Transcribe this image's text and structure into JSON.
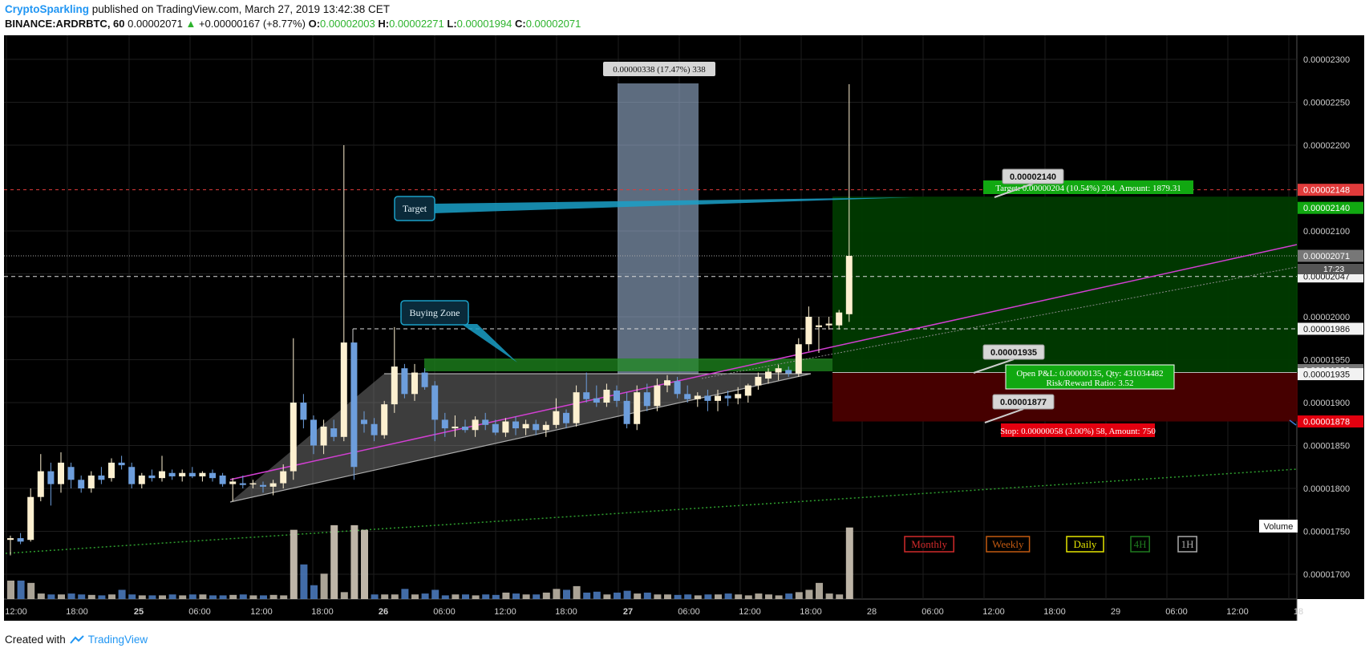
{
  "header": {
    "brand": "CryptoSparkling",
    "published": "published on TradingView.com, March 27, 2019 13:42:38 CET",
    "symbol": "BINANCE:ARDRBTC, 60",
    "last": "0.00002071",
    "arrow": "▲",
    "change": "+0.00000167 (+8.77%)",
    "o_label": "O:",
    "o": "0.00002003",
    "h_label": "H:",
    "h": "0.00002271",
    "l_label": "L:",
    "l": "0.00001994",
    "c_label": "C:",
    "c": "0.00002071"
  },
  "footer": {
    "created": "Created with",
    "tv": "TradingView"
  },
  "colors": {
    "bg": "#000000",
    "grid": "#1e1e1e",
    "up": "#fdf0d0",
    "down": "#6d9edc",
    "profit": "#003a00",
    "loss": "#4a0000",
    "target_line": "#e03b3b",
    "trend_magenta": "#d23fd2",
    "green_dots": "#2e9e2e"
  },
  "chart_data": {
    "type": "candlestick",
    "y_unit": "BTC",
    "ylim": [
      1.66e-05,
      2.33e-05
    ],
    "y_ticks": [
      "0.00002300",
      "0.00002250",
      "0.00002200",
      "0.00002100",
      "0.00002050",
      "0.00002000",
      "0.00001950",
      "0.00001900",
      "0.00001850",
      "0.00001800",
      "0.00001750",
      "0.00001700"
    ],
    "x_ticks": [
      "12:00",
      "18:00",
      "25",
      "06:00",
      "12:00",
      "18:00",
      "26",
      "06:00",
      "12:00",
      "18:00",
      "27",
      "06:00",
      "12:00",
      "18:00",
      "28",
      "06:00",
      "12:00",
      "18:00",
      "29",
      "06:00",
      "12:00",
      "18"
    ],
    "price_labels": [
      {
        "value": "0.00002148",
        "color": "#e03b3b"
      },
      {
        "value": "0.00002140",
        "color": "#11a811"
      },
      {
        "value": "0.00002071",
        "color": "#777777"
      },
      {
        "value": "0.00002047",
        "color": "#f2f2f2"
      },
      {
        "value": "0.00001986",
        "color": "#f2f2f2"
      },
      {
        "value": "0.00001936",
        "color": "#777777"
      },
      {
        "value": "0.00001935",
        "color": "#f2f2f2"
      },
      {
        "value": "0.00001878",
        "color": "#e3000f"
      }
    ],
    "countdown": "17:23",
    "candles": [
      [
        1.74e-05,
        1.745e-05,
        1.722e-05,
        1.742e-05
      ],
      [
        1.742e-05,
        1.748e-05,
        1.735e-05,
        1.738e-05
      ],
      [
        1.74e-05,
        1.8e-05,
        1.738e-05,
        1.79e-05
      ],
      [
        1.79e-05,
        1.84e-05,
        1.785e-05,
        1.82e-05
      ],
      [
        1.82e-05,
        1.83e-05,
        1.78e-05,
        1.805e-05
      ],
      [
        1.805e-05,
        1.842e-05,
        1.795e-05,
        1.83e-05
      ],
      [
        1.825e-05,
        1.83e-05,
        1.8e-05,
        1.81e-05
      ],
      [
        1.81e-05,
        1.815e-05,
        1.795e-05,
        1.8e-05
      ],
      [
        1.8e-05,
        1.82e-05,
        1.795e-05,
        1.815e-05
      ],
      [
        1.815e-05,
        1.825e-05,
        1.805e-05,
        1.81e-05
      ],
      [
        1.812e-05,
        1.835e-05,
        1.808e-05,
        1.83e-05
      ],
      [
        1.83e-05,
        1.838e-05,
        1.822e-05,
        1.827e-05
      ],
      [
        1.825e-05,
        1.83e-05,
        1.8e-05,
        1.805e-05
      ],
      [
        1.805e-05,
        1.818e-05,
        1.8e-05,
        1.815e-05
      ],
      [
        1.815e-05,
        1.822e-05,
        1.808e-05,
        1.812e-05
      ],
      [
        1.812e-05,
        1.838e-05,
        1.808e-05,
        1.82e-05
      ],
      [
        1.818e-05,
        1.822e-05,
        1.81e-05,
        1.814e-05
      ],
      [
        1.814e-05,
        1.822e-05,
        1.808e-05,
        1.818e-05
      ],
      [
        1.818e-05,
        1.825e-05,
        1.812e-05,
        1.814e-05
      ],
      [
        1.814e-05,
        1.82e-05,
        1.808e-05,
        1.818e-05
      ],
      [
        1.818e-05,
        1.822e-05,
        1.808e-05,
        1.812e-05
      ],
      [
        1.815e-05,
        1.818e-05,
        1.802e-05,
        1.805e-05
      ],
      [
        1.805e-05,
        1.812e-05,
        1.785e-05,
        1.808e-05
      ],
      [
        1.806e-05,
        1.815e-05,
        1.8e-05,
        1.804e-05
      ],
      [
        1.805e-05,
        1.81e-05,
        1.8e-05,
        1.806e-05
      ],
      [
        1.804e-05,
        1.808e-05,
        1.795e-05,
        1.802e-05
      ],
      [
        1.802e-05,
        1.81e-05,
        1.792e-05,
        1.806e-05
      ],
      [
        1.806e-05,
        1.828e-05,
        1.8e-05,
        1.82e-05
      ],
      [
        1.82e-05,
        1.975e-05,
        1.81e-05,
        1.9e-05
      ],
      [
        1.9e-05,
        1.91e-05,
        1.87e-05,
        1.88e-05
      ],
      [
        1.88e-05,
        1.885e-05,
        1.84e-05,
        1.85e-05
      ],
      [
        1.85e-05,
        1.88e-05,
        1.84e-05,
        1.872e-05
      ],
      [
        1.87e-05,
        1.88e-05,
        1.855e-05,
        1.86e-05
      ],
      [
        1.86e-05,
        2.2e-05,
        1.855e-05,
        1.97e-05
      ],
      [
        1.97e-05,
        1.97e-05,
        1.81e-05,
        1.825e-05
      ],
      [
        1.88e-05,
        1.89e-05,
        1.865e-05,
        1.875e-05
      ],
      [
        1.875e-05,
        1.882e-05,
        1.855e-05,
        1.862e-05
      ],
      [
        1.862e-05,
        1.902e-05,
        1.858e-05,
        1.898e-05
      ],
      [
        1.898e-05,
        1.988e-05,
        1.888e-05,
        1.942e-05
      ],
      [
        1.94e-05,
        1.945e-05,
        1.905e-05,
        1.91e-05
      ],
      [
        1.91e-05,
        1.945e-05,
        1.902e-05,
        1.935e-05
      ],
      [
        1.935e-05,
        1.94e-05,
        1.915e-05,
        1.918e-05
      ],
      [
        1.92e-05,
        1.925e-05,
        1.855e-05,
        1.88e-05
      ],
      [
        1.88e-05,
        1.888e-05,
        1.86e-05,
        1.87e-05
      ],
      [
        1.87e-05,
        1.885e-05,
        1.86e-05,
        1.872e-05
      ],
      [
        1.872e-05,
        1.88e-05,
        1.865e-05,
        1.868e-05
      ],
      [
        1.868e-05,
        1.884e-05,
        1.86e-05,
        1.88e-05
      ],
      [
        1.88e-05,
        1.888e-05,
        1.868e-05,
        1.874e-05
      ],
      [
        1.875e-05,
        1.88e-05,
        1.862e-05,
        1.865e-05
      ],
      [
        1.865e-05,
        1.882e-05,
        1.86e-05,
        1.878e-05
      ],
      [
        1.878e-05,
        1.884e-05,
        1.862e-05,
        1.87e-05
      ],
      [
        1.87e-05,
        1.88e-05,
        1.862e-05,
        1.875e-05
      ],
      [
        1.875e-05,
        1.88e-05,
        1.862e-05,
        1.868e-05
      ],
      [
        1.868e-05,
        1.878e-05,
        1.86e-05,
        1.874e-05
      ],
      [
        1.874e-05,
        1.905e-05,
        1.87e-05,
        1.89e-05
      ],
      [
        1.888e-05,
        1.892e-05,
        1.87e-05,
        1.876e-05
      ],
      [
        1.876e-05,
        1.92e-05,
        1.872e-05,
        1.912e-05
      ],
      [
        1.912e-05,
        1.935e-05,
        1.9e-05,
        1.904e-05
      ],
      [
        1.905e-05,
        1.92e-05,
        1.895e-05,
        1.9e-05
      ],
      [
        1.9e-05,
        1.922e-05,
        1.895e-05,
        1.915e-05
      ],
      [
        1.914e-05,
        1.92e-05,
        1.895e-05,
        1.902e-05
      ],
      [
        1.902e-05,
        1.912e-05,
        1.87e-05,
        1.875e-05
      ],
      [
        1.875e-05,
        1.92e-05,
        1.868e-05,
        1.912e-05
      ],
      [
        1.912e-05,
        1.922e-05,
        1.89e-05,
        1.896e-05
      ],
      [
        1.896e-05,
        1.928e-05,
        1.89e-05,
        1.92e-05
      ],
      [
        1.92e-05,
        1.932e-05,
        1.912e-05,
        1.926e-05
      ],
      [
        1.925e-05,
        1.93e-05,
        1.905e-05,
        1.91e-05
      ],
      [
        1.91e-05,
        1.92e-05,
        1.9e-05,
        1.904e-05
      ],
      [
        1.904e-05,
        1.912e-05,
        1.895e-05,
        1.908e-05
      ],
      [
        1.908e-05,
        1.915e-05,
        1.89e-05,
        1.902e-05
      ],
      [
        1.902e-05,
        1.915e-05,
        1.89e-05,
        1.908e-05
      ],
      [
        1.908e-05,
        1.914e-05,
        1.896e-05,
        1.905e-05
      ],
      [
        1.905e-05,
        1.918e-05,
        1.898e-05,
        1.91e-05
      ],
      [
        1.908e-05,
        1.922e-05,
        1.9e-05,
        1.92e-05
      ],
      [
        1.92e-05,
        1.935e-05,
        1.915e-05,
        1.93e-05
      ],
      [
        1.928e-05,
        1.94e-05,
        1.922e-05,
        1.936e-05
      ],
      [
        1.935e-05,
        1.944e-05,
        1.926e-05,
        1.94e-05
      ],
      [
        1.938e-05,
        1.942e-05,
        1.93e-05,
        1.934e-05
      ],
      [
        1.934e-05,
        1.975e-05,
        1.93e-05,
        1.968e-05
      ],
      [
        1.968e-05,
        2.012e-05,
        1.96e-05,
        2e-05
      ],
      [
        1.988e-05,
        2e-05,
        1.958e-05,
        1.99e-05
      ],
      [
        1.99e-05,
        2e-05,
        1.985e-05,
        1.992e-05
      ],
      [
        1.99e-05,
        2.008e-05,
        1.985e-05,
        2.005e-05
      ],
      [
        2.003e-05,
        2.271e-05,
        1.994e-05,
        2.071e-05
      ]
    ],
    "volume": [
      40,
      40,
      35,
      12,
      10,
      10,
      12,
      10,
      9,
      8,
      10,
      20,
      10,
      8,
      8,
      8,
      10,
      8,
      10,
      10,
      8,
      8,
      9,
      10,
      8,
      8,
      9,
      8,
      150,
      75,
      30,
      55,
      160,
      15,
      160,
      150,
      10,
      10,
      10,
      22,
      10,
      12,
      20,
      8,
      10,
      10,
      8,
      10,
      9,
      14,
      12,
      10,
      10,
      14,
      22,
      20,
      28,
      14,
      16,
      10,
      14,
      18,
      12,
      14,
      10,
      10,
      9,
      10,
      8,
      10,
      10,
      12,
      10,
      8,
      12,
      10,
      8,
      12,
      15,
      20,
      35,
      12,
      10,
      155
    ],
    "volume_label": "Volume",
    "measure_label": "0.00000338 (17.47%) 338",
    "target_label": "Target: 0.00000204 (10.54%) 204, Amount: 1879.31",
    "stop_label": "Stop: 0.00000058 (3.00%) 58, Amount: 750",
    "pnl_line1": "Open P&L: 0.00000135, Qty: 431034482",
    "pnl_line2": "Risk/Reward Ratio: 3.52",
    "callout_target": "0.00002140",
    "callout_entry": "0.00001935",
    "callout_stop": "0.00001877",
    "annot_target": "Target",
    "annot_buying_zone": "Buying Zone",
    "timeframes": [
      {
        "label": "Monthly",
        "color": "#d12a2a"
      },
      {
        "label": "Weekly",
        "color": "#c25a11"
      },
      {
        "label": "Daily",
        "color": "#e6e600"
      },
      {
        "label": "4H",
        "color": "#1f7a1f"
      },
      {
        "label": "1H",
        "color": "#aaaaaa"
      }
    ]
  }
}
